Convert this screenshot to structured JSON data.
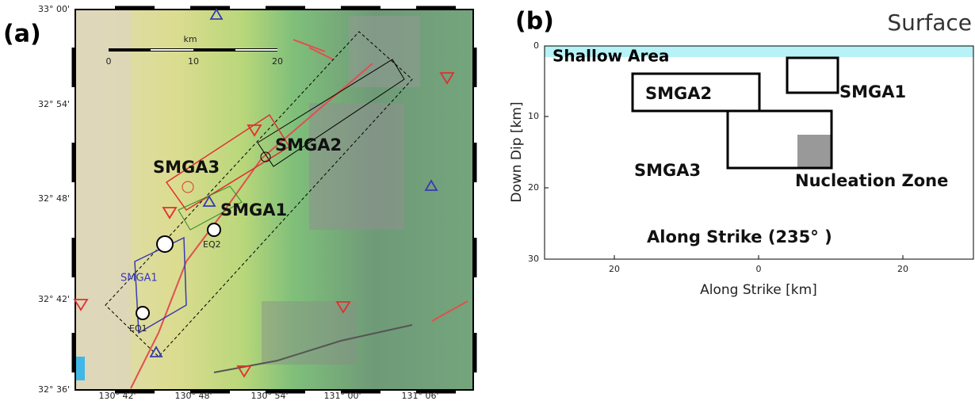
{
  "panel_a": {
    "label": "(a)",
    "lat_labels": [
      "33° 00'",
      "32° 54'",
      "32° 48'",
      "32° 42'",
      "32° 36'"
    ],
    "lon_labels": [
      "130° 42'",
      "130° 48'",
      "130° 54'",
      "131° 00'",
      "131° 06'"
    ],
    "scale": {
      "unit": "km",
      "ticks": [
        "0",
        "10",
        "20"
      ]
    },
    "labels": {
      "smga3": "SMGA3",
      "smga2": "SMGA2",
      "smga1": "SMGA1",
      "smga1_blue": "SMGA1",
      "eq2": "EQ2",
      "eq1": "EQ1"
    }
  },
  "panel_b": {
    "label": "(b)",
    "surface": "Surface",
    "shallow": "Shallow Area",
    "smga1": "SMGA1",
    "smga2": "SMGA2",
    "smga3": "SMGA3",
    "nucleation": "Nucleation Zone",
    "strike_note": "Along Strike (235°  )",
    "x_title": "Along Strike [km]",
    "y_title": "Down Dip [km]",
    "xticks": [
      "20",
      "0",
      "20"
    ],
    "yticks": [
      "0",
      "10",
      "20",
      "30"
    ]
  }
}
